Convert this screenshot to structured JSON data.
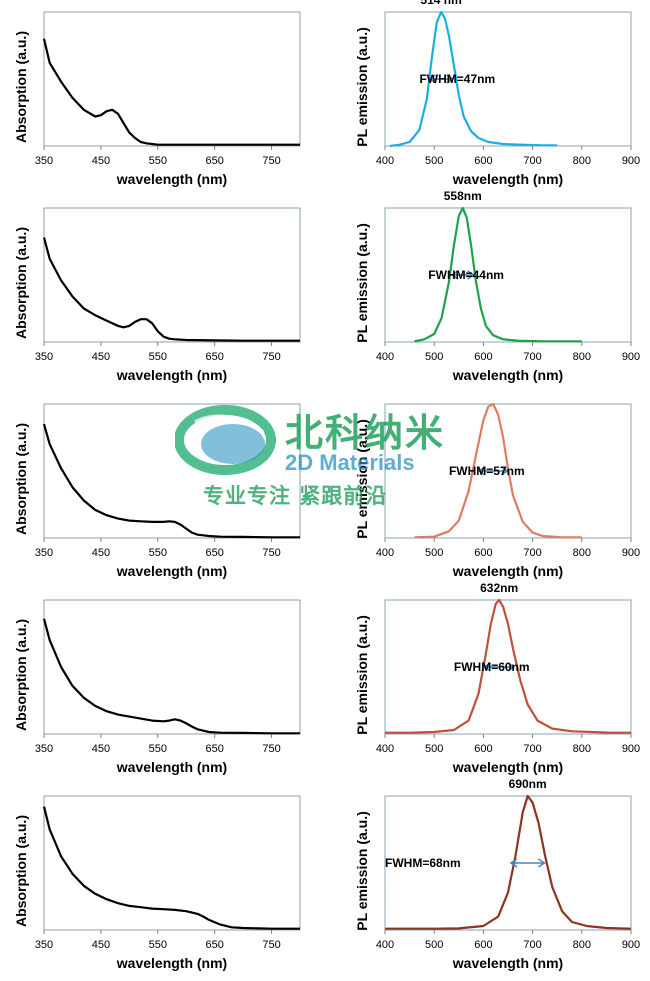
{
  "chart_data": [
    {
      "type": "line",
      "ylabel": "Absorption (a.u.)",
      "xlabel": "wavelength (nm)",
      "xlim": [
        350,
        800
      ],
      "ylim": [
        0,
        1
      ],
      "xticks": [
        350,
        450,
        550,
        650,
        750
      ],
      "color": "#000000",
      "peak_nm": null,
      "fwhm_label": "",
      "fwhm_nm": null,
      "series": [
        {
          "x": [
            350,
            360,
            380,
            400,
            420,
            440,
            450,
            460,
            470,
            480,
            490,
            500,
            510,
            520,
            530,
            540,
            550,
            560,
            600,
            650,
            700,
            750,
            800
          ],
          "y": [
            0.8,
            0.62,
            0.48,
            0.36,
            0.27,
            0.22,
            0.23,
            0.26,
            0.27,
            0.24,
            0.17,
            0.1,
            0.06,
            0.03,
            0.02,
            0.015,
            0.01,
            0.01,
            0.01,
            0.01,
            0.01,
            0.01,
            0.01
          ]
        }
      ]
    },
    {
      "type": "line",
      "ylabel": "PL emission (a.u.)",
      "xlabel": "wavelength (nm)",
      "xlim": [
        400,
        900
      ],
      "ylim": [
        0,
        1
      ],
      "xticks": [
        400,
        500,
        600,
        700,
        800,
        900
      ],
      "color": "#1aaee5",
      "peak_nm": "514 nm",
      "fwhm_label": "FWHM=47nm",
      "fwhm_nm": 47,
      "series": [
        {
          "x": [
            410,
            430,
            450,
            470,
            485,
            495,
            505,
            514,
            522,
            530,
            540,
            550,
            560,
            575,
            590,
            610,
            640,
            680,
            720,
            750
          ],
          "y": [
            0.0,
            0.01,
            0.03,
            0.12,
            0.35,
            0.65,
            0.92,
            1.0,
            0.95,
            0.82,
            0.6,
            0.38,
            0.22,
            0.11,
            0.06,
            0.03,
            0.015,
            0.01,
            0.005,
            0.005
          ]
        }
      ]
    },
    {
      "type": "line",
      "ylabel": "Absorption (a.u.)",
      "xlabel": "wavelength (nm)",
      "xlim": [
        350,
        800
      ],
      "ylim": [
        0,
        1
      ],
      "xticks": [
        350,
        450,
        550,
        650,
        750
      ],
      "color": "#000000",
      "peak_nm": null,
      "fwhm_label": "",
      "fwhm_nm": null,
      "series": [
        {
          "x": [
            350,
            360,
            380,
            400,
            420,
            440,
            460,
            480,
            490,
            500,
            510,
            520,
            530,
            540,
            550,
            560,
            570,
            580,
            600,
            650,
            700,
            750,
            800
          ],
          "y": [
            0.78,
            0.62,
            0.46,
            0.34,
            0.25,
            0.2,
            0.16,
            0.12,
            0.11,
            0.12,
            0.15,
            0.17,
            0.17,
            0.14,
            0.08,
            0.04,
            0.025,
            0.02,
            0.015,
            0.012,
            0.01,
            0.01,
            0.01
          ]
        }
      ]
    },
    {
      "type": "line",
      "ylabel": "PL emission (a.u.)",
      "xlabel": "wavelength (nm)",
      "xlim": [
        400,
        900
      ],
      "ylim": [
        0,
        1
      ],
      "xticks": [
        400,
        500,
        600,
        700,
        800,
        900
      ],
      "color": "#1aa34a",
      "peak_nm": "558nm",
      "fwhm_label": "FWHM=44nm",
      "fwhm_nm": 44,
      "series": [
        {
          "x": [
            460,
            480,
            500,
            515,
            530,
            540,
            550,
            558,
            566,
            575,
            585,
            595,
            605,
            620,
            640,
            670,
            720,
            760,
            800
          ],
          "y": [
            0.005,
            0.02,
            0.06,
            0.18,
            0.45,
            0.72,
            0.94,
            1.0,
            0.93,
            0.72,
            0.45,
            0.25,
            0.12,
            0.05,
            0.02,
            0.01,
            0.005,
            0.005,
            0.005
          ]
        }
      ]
    },
    {
      "type": "line",
      "ylabel": "Absorption (a.u.)",
      "xlabel": "wavelength (nm)",
      "xlim": [
        350,
        800
      ],
      "ylim": [
        0,
        1
      ],
      "xticks": [
        350,
        450,
        550,
        650,
        750
      ],
      "color": "#000000",
      "peak_nm": "",
      "fwhm_label": "FWHM=57nm",
      "fwhm_nm": 57,
      "series": [
        {
          "x": [
            350,
            360,
            380,
            400,
            420,
            440,
            460,
            480,
            500,
            520,
            540,
            560,
            570,
            580,
            590,
            600,
            610,
            620,
            630,
            640,
            660,
            700,
            750,
            800
          ],
          "y": [
            0.85,
            0.7,
            0.52,
            0.38,
            0.28,
            0.21,
            0.17,
            0.145,
            0.13,
            0.125,
            0.12,
            0.12,
            0.125,
            0.12,
            0.1,
            0.07,
            0.04,
            0.025,
            0.02,
            0.015,
            0.01,
            0.008,
            0.005,
            0.005
          ]
        }
      ]
    },
    {
      "type": "line",
      "ylabel": "PL emission (a.u.)",
      "xlabel": "wavelength (nm)",
      "xlim": [
        400,
        900
      ],
      "ylim": [
        0,
        1
      ],
      "xticks": [
        400,
        500,
        600,
        700,
        800,
        900
      ],
      "color": "#e07a64",
      "peak_nm": "",
      "fwhm_label": "FWHM=57nm",
      "fwhm_nm": 57,
      "series": [
        {
          "x": [
            460,
            500,
            530,
            550,
            570,
            585,
            600,
            610,
            620,
            630,
            640,
            650,
            660,
            680,
            700,
            720,
            760,
            800
          ],
          "y": [
            0.005,
            0.01,
            0.05,
            0.13,
            0.35,
            0.62,
            0.88,
            0.98,
            1.0,
            0.92,
            0.75,
            0.52,
            0.32,
            0.12,
            0.04,
            0.015,
            0.005,
            0.005
          ]
        }
      ]
    },
    {
      "type": "line",
      "ylabel": "Absorption (a.u.)",
      "xlabel": "wavelength (nm)",
      "xlim": [
        350,
        800
      ],
      "ylim": [
        0,
        1
      ],
      "xticks": [
        350,
        450,
        550,
        650,
        750
      ],
      "color": "#000000",
      "peak_nm": null,
      "fwhm_label": "",
      "fwhm_nm": null,
      "series": [
        {
          "x": [
            350,
            360,
            380,
            400,
            420,
            440,
            460,
            480,
            500,
            520,
            540,
            560,
            570,
            580,
            590,
            600,
            610,
            620,
            640,
            660,
            700,
            750,
            800
          ],
          "y": [
            0.86,
            0.7,
            0.5,
            0.36,
            0.27,
            0.21,
            0.17,
            0.145,
            0.13,
            0.115,
            0.1,
            0.095,
            0.1,
            0.11,
            0.1,
            0.08,
            0.055,
            0.035,
            0.015,
            0.01,
            0.008,
            0.005,
            0.005
          ]
        }
      ]
    },
    {
      "type": "line",
      "ylabel": "PL emission (a.u.)",
      "xlabel": "wavelength (nm)",
      "xlim": [
        400,
        900
      ],
      "ylim": [
        0,
        1
      ],
      "xticks": [
        400,
        500,
        600,
        700,
        800,
        900
      ],
      "color": "#c0503a",
      "peak_nm": "632nm",
      "fwhm_label": "FWHM=60nm",
      "fwhm_nm": 60,
      "series": [
        {
          "x": [
            400,
            450,
            500,
            540,
            570,
            590,
            605,
            615,
            625,
            632,
            640,
            650,
            660,
            675,
            690,
            710,
            740,
            780,
            820,
            860,
            900
          ],
          "y": [
            0.01,
            0.01,
            0.015,
            0.03,
            0.1,
            0.3,
            0.6,
            0.82,
            0.97,
            1.0,
            0.95,
            0.82,
            0.64,
            0.4,
            0.22,
            0.1,
            0.04,
            0.02,
            0.015,
            0.01,
            0.01
          ]
        }
      ]
    },
    {
      "type": "line",
      "ylabel": "Absorption (a.u.)",
      "xlabel": "wavelength (nm)",
      "xlim": [
        350,
        800
      ],
      "ylim": [
        0,
        1
      ],
      "xticks": [
        350,
        450,
        550,
        650,
        750
      ],
      "color": "#000000",
      "peak_nm": null,
      "fwhm_label": "",
      "fwhm_nm": null,
      "series": [
        {
          "x": [
            350,
            360,
            380,
            400,
            420,
            440,
            460,
            480,
            500,
            520,
            540,
            560,
            580,
            600,
            620,
            630,
            640,
            660,
            680,
            700,
            750,
            800
          ],
          "y": [
            0.92,
            0.75,
            0.55,
            0.42,
            0.33,
            0.27,
            0.23,
            0.2,
            0.18,
            0.17,
            0.16,
            0.155,
            0.15,
            0.14,
            0.12,
            0.1,
            0.075,
            0.04,
            0.02,
            0.015,
            0.01,
            0.01
          ]
        }
      ]
    },
    {
      "type": "line",
      "ylabel": "PL emission (a.u.)",
      "xlabel": "wavelength (nm)",
      "xlim": [
        400,
        900
      ],
      "ylim": [
        0,
        1
      ],
      "xticks": [
        400,
        500,
        600,
        700,
        800,
        900
      ],
      "color": "#8a3520",
      "peak_nm": "690nm",
      "fwhm_label": "FWHM=68nm",
      "fwhm_nm": 68,
      "series": [
        {
          "x": [
            400,
            450,
            500,
            550,
            600,
            630,
            650,
            665,
            680,
            690,
            700,
            712,
            725,
            740,
            760,
            780,
            810,
            850,
            900
          ],
          "y": [
            0.01,
            0.01,
            0.01,
            0.012,
            0.03,
            0.1,
            0.28,
            0.55,
            0.88,
            1.0,
            0.95,
            0.8,
            0.56,
            0.32,
            0.14,
            0.06,
            0.03,
            0.015,
            0.01
          ]
        }
      ]
    }
  ],
  "watermark": {
    "brand_cn": "北科纳米",
    "brand_en": "2D Materials",
    "slogan": "专业专注 紧跟前沿",
    "logo_icon": "ring-logo-icon"
  }
}
